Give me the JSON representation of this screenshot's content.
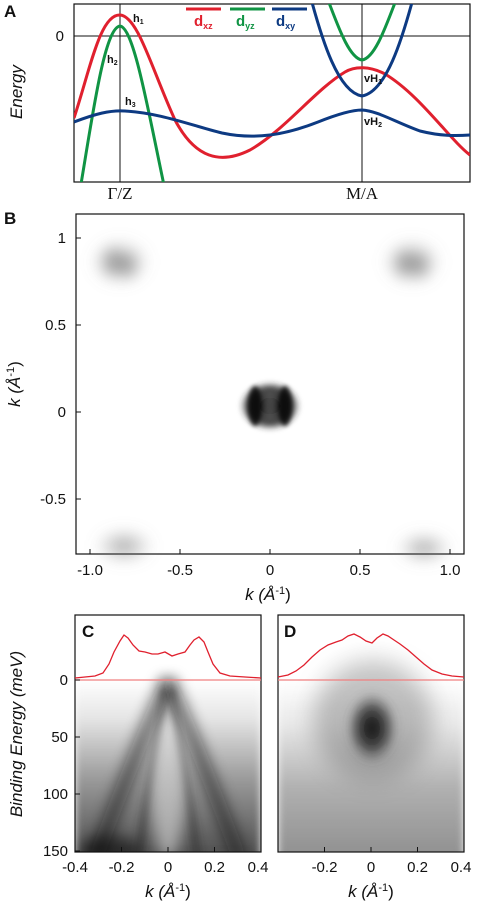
{
  "panel_a": {
    "label": "A",
    "ylabel": "Energy",
    "zero_tick": "0",
    "x_ticks": [
      "Γ/Z",
      "M/A"
    ],
    "legend": [
      {
        "name": "d",
        "sub": "xz",
        "color": "#e0202e"
      },
      {
        "name": "d",
        "sub": "yz",
        "color": "#109444"
      },
      {
        "name": "d",
        "sub": "xy",
        "color": "#0d3a82"
      }
    ],
    "band_labels": [
      {
        "main": "h",
        "sub": "1"
      },
      {
        "main": "h",
        "sub": "2"
      },
      {
        "main": "h",
        "sub": "3"
      },
      {
        "main": "vH",
        "sub": "1"
      },
      {
        "main": "vH",
        "sub": "2"
      }
    ]
  },
  "panel_b": {
    "label": "B",
    "xlabel": "k  (Å",
    "xlabel_sup": "-1",
    "ylabel": "k  (Å",
    "ylabel_sup": "-1",
    "x_ticks": [
      "-1.0",
      "-0.5",
      "0",
      "0.5",
      "1.0"
    ],
    "y_ticks": [
      "1",
      "0.5",
      "0",
      "-0.5"
    ]
  },
  "panel_c": {
    "label": "C",
    "ylabel": "Binding Energy  (meV)",
    "xlabel": "k  (Å",
    "xlabel_sup": "-1",
    "y_ticks": [
      "0",
      "50",
      "100",
      "150"
    ],
    "x_ticks": [
      "-0.4",
      "-0.2",
      "0",
      "0.2",
      "0.4"
    ]
  },
  "panel_d": {
    "label": "D",
    "xlabel": "k  (Å",
    "xlabel_sup": "-1",
    "x_ticks": [
      "-0.2",
      "0",
      "0.2",
      "0.4"
    ]
  },
  "colors": {
    "edc_red": "#e0202e",
    "fermi_line": "#f08080"
  }
}
